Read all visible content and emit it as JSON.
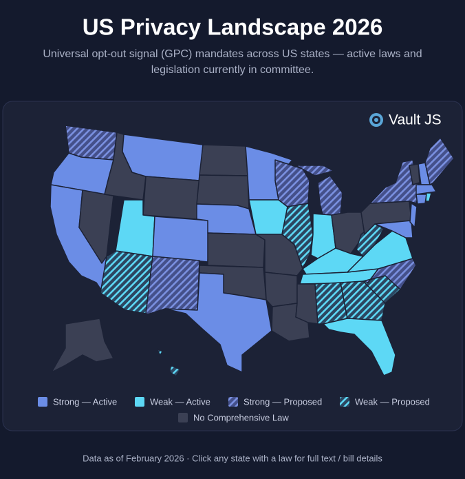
{
  "header": {
    "title": "US Privacy Landscape 2026",
    "subtitle_lines": [
      "Universal opt-out signal (GPC) mandates across US states — active laws and",
      "legislation currently in committee."
    ]
  },
  "brand": "Vault JS",
  "legend": [
    {
      "label": "Strong — Active",
      "color": "#6b8de6",
      "hatched": false
    },
    {
      "label": "Weak — Active",
      "color": "#5dd8f5",
      "hatched": false
    },
    {
      "label": "Strong — Proposed",
      "color": "#7a90e0",
      "hatched": true
    },
    {
      "label": "Weak — Proposed",
      "color": "#5dd8f5",
      "hatched": true
    },
    {
      "label": "No Comprehensive Law",
      "color": "#3b4054",
      "hatched": false
    }
  ],
  "footer": "Data as of February 2026 · Click any state with a law for full text / bill details"
}
